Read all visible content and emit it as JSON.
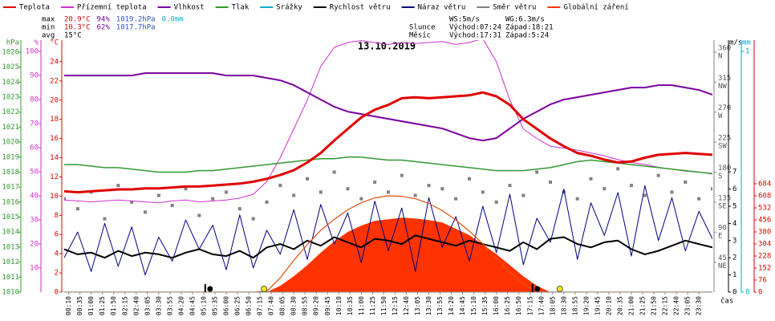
{
  "chart_data": {
    "type": "line",
    "title": "13.10.2019",
    "x_label": "čas",
    "x": [
      0,
      30,
      60,
      90,
      120,
      150,
      180,
      210,
      240,
      270,
      300,
      330,
      360,
      390,
      420,
      450,
      480,
      510,
      540,
      570,
      600,
      630,
      660,
      690,
      720,
      750,
      780,
      810,
      840,
      870,
      900,
      930,
      960,
      990,
      1020,
      1050,
      1080,
      1110,
      1140,
      1170,
      1200,
      1230,
      1260,
      1290,
      1320,
      1350,
      1380,
      1410,
      1440
    ],
    "xlim": [
      0,
      1440
    ],
    "xticks": [
      {
        "value": 10,
        "label": "00:10"
      },
      {
        "value": 35,
        "label": "00:35"
      },
      {
        "value": 60,
        "label": "01:00"
      },
      {
        "value": 85,
        "label": "01:25"
      },
      {
        "value": 110,
        "label": "01:50"
      },
      {
        "value": 135,
        "label": "02:15"
      },
      {
        "value": 160,
        "label": "02:40"
      },
      {
        "value": 185,
        "label": "03:05"
      },
      {
        "value": 210,
        "label": "03:30"
      },
      {
        "value": 235,
        "label": "03:55"
      },
      {
        "value": 260,
        "label": "04:20"
      },
      {
        "value": 285,
        "label": "04:45"
      },
      {
        "value": 310,
        "label": "05:10"
      },
      {
        "value": 335,
        "label": "05:35"
      },
      {
        "value": 360,
        "label": "06:00"
      },
      {
        "value": 385,
        "label": "06:25"
      },
      {
        "value": 410,
        "label": "06:50"
      },
      {
        "value": 435,
        "label": "07:15"
      },
      {
        "value": 460,
        "label": "07:40"
      },
      {
        "value": 485,
        "label": "08:05"
      },
      {
        "value": 510,
        "label": "08:30"
      },
      {
        "value": 535,
        "label": "08:55"
      },
      {
        "value": 560,
        "label": "09:20"
      },
      {
        "value": 585,
        "label": "09:45"
      },
      {
        "value": 610,
        "label": "10:10"
      },
      {
        "value": 635,
        "label": "10:35"
      },
      {
        "value": 660,
        "label": "11:00"
      },
      {
        "value": 685,
        "label": "11:25"
      },
      {
        "value": 710,
        "label": "11:50"
      },
      {
        "value": 735,
        "label": "12:15"
      },
      {
        "value": 760,
        "label": "12:40"
      },
      {
        "value": 785,
        "label": "13:05"
      },
      {
        "value": 810,
        "label": "13:30"
      },
      {
        "value": 835,
        "label": "13:55"
      },
      {
        "value": 860,
        "label": "14:20"
      },
      {
        "value": 885,
        "label": "14:45"
      },
      {
        "value": 910,
        "label": "15:10"
      },
      {
        "value": 935,
        "label": "15:35"
      },
      {
        "value": 960,
        "label": "16:00"
      },
      {
        "value": 985,
        "label": "16:25"
      },
      {
        "value": 1010,
        "label": "16:50"
      },
      {
        "value": 1035,
        "label": "17:15"
      },
      {
        "value": 1060,
        "label": "17:40"
      },
      {
        "value": 1085,
        "label": "18:05"
      },
      {
        "value": 1110,
        "label": "18:30"
      },
      {
        "value": 1135,
        "label": "18:55"
      },
      {
        "value": 1160,
        "label": "19:20"
      },
      {
        "value": 1185,
        "label": "19:45"
      },
      {
        "value": 1210,
        "label": "20:10"
      },
      {
        "value": 1235,
        "label": "20:35"
      },
      {
        "value": 1260,
        "label": "21:00"
      },
      {
        "value": 1285,
        "label": "21:25"
      },
      {
        "value": 1310,
        "label": "21:50"
      },
      {
        "value": 1335,
        "label": "22:15"
      },
      {
        "value": 1360,
        "label": "22:40"
      },
      {
        "value": 1385,
        "label": "23:05"
      },
      {
        "value": 1410,
        "label": "23:30"
      }
    ],
    "axes": {
      "hpa": {
        "unit": "hPa",
        "color": "#339933",
        "side": "left",
        "lim": [
          1010,
          1026.8
        ],
        "ticks": [
          1010,
          1011,
          1012,
          1013,
          1014,
          1015,
          1016,
          1017,
          1018,
          1019,
          1020,
          1021,
          1022,
          1023,
          1024,
          1025,
          1026
        ]
      },
      "pct": {
        "unit": "%",
        "color": "#cc33cc",
        "side": "left",
        "lim": [
          0,
          104.7
        ],
        "ticks": [
          10,
          20,
          30,
          40,
          50,
          60,
          70,
          80,
          90,
          100
        ]
      },
      "c": {
        "unit": "°C",
        "color": "#e00000",
        "side": "left",
        "lim": [
          0,
          26.25
        ],
        "ticks": [
          0,
          2,
          4,
          6,
          8,
          10,
          12,
          14,
          16,
          18,
          20,
          22,
          24
        ]
      },
      "deg": {
        "color": "#808080",
        "side": "right",
        "lim": [
          0,
          378
        ],
        "ticks": [
          45,
          90,
          135,
          180,
          225,
          270,
          315,
          360
        ],
        "names": [
          "NE",
          "E",
          "SE",
          "S",
          "SW",
          "W",
          "NW",
          "N"
        ]
      },
      "ms": {
        "unit": "m/s",
        "color": "#000000",
        "side": "right",
        "lim": [
          0,
          14.67
        ],
        "ticks": [
          0,
          1,
          2,
          3,
          4,
          5,
          6,
          7
        ]
      },
      "mm": {
        "unit": "mm",
        "color": "#00aacc",
        "side": "right",
        "lim": [
          0,
          1.047
        ],
        "ticks": [
          0,
          1
        ]
      },
      "w": {
        "color": "#e00000",
        "side": "right",
        "lim": [
          0,
          1591
        ],
        "ticks": [
          0,
          76,
          152,
          228,
          304,
          380,
          456,
          532,
          608,
          684
        ]
      }
    },
    "series": [
      {
        "name": "Teplota",
        "color": "#e00000",
        "axis": "c",
        "width": 3,
        "values": [
          10.5,
          10.4,
          10.5,
          10.6,
          10.7,
          10.7,
          10.8,
          10.8,
          10.9,
          11.0,
          11.0,
          11.1,
          11.2,
          11.3,
          11.5,
          11.8,
          12.2,
          12.7,
          13.5,
          14.5,
          15.8,
          17.0,
          18.2,
          19.0,
          19.5,
          20.2,
          20.3,
          20.2,
          20.3,
          20.4,
          20.5,
          20.8,
          20.4,
          19.5,
          18.0,
          17.0,
          16.0,
          15.2,
          14.5,
          14.2,
          13.8,
          13.5,
          13.6,
          14.0,
          14.3,
          14.4,
          14.5,
          14.4,
          14.3
        ]
      },
      {
        "name": "Přízemní teplota",
        "color": "#cc33cc",
        "axis": "c",
        "width": 1,
        "values": [
          9.6,
          9.5,
          9.4,
          9.5,
          9.6,
          9.5,
          9.4,
          9.3,
          9.5,
          9.6,
          9.4,
          9.5,
          9.6,
          9.8,
          10.2,
          11.5,
          14,
          17,
          20,
          23.5,
          25.5,
          26,
          26.2,
          26,
          25.8,
          26,
          25.9,
          26,
          26.1,
          25.8,
          26,
          26.4,
          24,
          20,
          17,
          16,
          15.2,
          15,
          14.8,
          14.5,
          14.2,
          13.8,
          13.5,
          13.3,
          13,
          12.8,
          12.6,
          12.5,
          12.3
        ]
      },
      {
        "name": "Vlhkost",
        "color": "#7a00a0",
        "axis": "pct",
        "width": 2,
        "values": [
          90,
          90,
          90,
          90,
          90,
          90,
          91,
          91,
          91,
          91,
          91,
          91,
          90,
          90,
          90,
          89,
          88,
          86,
          83,
          80,
          77,
          75,
          74,
          73,
          72,
          71,
          70,
          69,
          68,
          66,
          64,
          63,
          64,
          68,
          72,
          75,
          78,
          80,
          81,
          82,
          83,
          84,
          85,
          85,
          86,
          86,
          85,
          84,
          82
        ]
      },
      {
        "name": "Tlak",
        "color": "#339933",
        "axis": "hpa",
        "width": 1.5,
        "values": [
          1018.5,
          1018.5,
          1018.4,
          1018.3,
          1018.3,
          1018.2,
          1018.1,
          1018.0,
          1018.0,
          1018.0,
          1018.1,
          1018.1,
          1018.2,
          1018.3,
          1018.4,
          1018.5,
          1018.6,
          1018.7,
          1018.8,
          1018.9,
          1018.9,
          1019.0,
          1019.0,
          1018.9,
          1018.8,
          1018.8,
          1018.7,
          1018.6,
          1018.5,
          1018.4,
          1018.3,
          1018.2,
          1018.1,
          1018.1,
          1018.1,
          1018.2,
          1018.3,
          1018.5,
          1018.7,
          1018.8,
          1018.7,
          1018.6,
          1018.5,
          1018.4,
          1018.3,
          1018.2,
          1018.1,
          1018.0,
          1017.9
        ]
      },
      {
        "name": "Srážky",
        "color": "#00aacc",
        "axis": "mm",
        "width": 1,
        "values": [
          0,
          0,
          0,
          0,
          0,
          0,
          0,
          0,
          0,
          0,
          0,
          0,
          0,
          0,
          0,
          0,
          0,
          0,
          0,
          0,
          0,
          0,
          0,
          0,
          0,
          0,
          0,
          0,
          0,
          0,
          0,
          0,
          0,
          0,
          0,
          0,
          0,
          0,
          0,
          0,
          0,
          0,
          0,
          0,
          0,
          0,
          0,
          0,
          0
        ]
      },
      {
        "name": "Rychlost větru",
        "color": "#000000",
        "axis": "ms",
        "width": 2,
        "values": [
          2.5,
          2.2,
          2.3,
          2.0,
          2.4,
          2.1,
          2.3,
          2.2,
          2.0,
          2.3,
          2.5,
          2.2,
          2.1,
          2.4,
          2.0,
          2.6,
          2.8,
          2.5,
          3.0,
          2.7,
          3.2,
          2.9,
          2.6,
          3.1,
          3.0,
          2.8,
          3.3,
          3.1,
          2.9,
          2.7,
          3.0,
          2.8,
          2.6,
          2.4,
          2.9,
          2.5,
          3.1,
          3.2,
          2.8,
          2.6,
          2.9,
          3.0,
          2.5,
          2.2,
          2.4,
          2.7,
          3.0,
          2.8,
          2.6
        ]
      },
      {
        "name": "Náraz větru",
        "color": "#000080",
        "axis": "ms",
        "width": 1,
        "values": [
          2.0,
          3.5,
          1.2,
          4.0,
          1.5,
          3.8,
          1.0,
          3.2,
          1.8,
          4.2,
          2.5,
          3.9,
          1.3,
          4.5,
          1.4,
          3.6,
          2.2,
          4.8,
          1.9,
          5.1,
          2.8,
          4.6,
          1.7,
          5.3,
          2.4,
          4.9,
          1.2,
          5.5,
          2.6,
          4.4,
          1.8,
          5.0,
          2.3,
          5.7,
          1.6,
          4.3,
          2.9,
          6.0,
          1.9,
          5.2,
          3.3,
          5.8,
          2.1,
          6.2,
          3.0,
          5.5,
          2.4,
          4.7,
          3.1
        ]
      },
      {
        "name": "Směr větru",
        "color": "#808080",
        "axis": "deg",
        "kind": "scatter",
        "values": [
          140,
          125,
          150,
          110,
          160,
          135,
          120,
          145,
          130,
          155,
          115,
          140,
          150,
          125,
          110,
          135,
          160,
          145,
          170,
          150,
          180,
          155,
          140,
          165,
          150,
          175,
          145,
          160,
          155,
          140,
          170,
          150,
          135,
          160,
          145,
          180,
          165,
          150,
          140,
          170,
          155,
          185,
          160,
          145,
          175,
          150,
          165,
          140,
          155
        ]
      },
      {
        "name": "Globální záření",
        "color": "#ff3300",
        "axis": "w",
        "kind": "area",
        "values": [
          0,
          0,
          0,
          0,
          0,
          0,
          0,
          0,
          0,
          0,
          0,
          0,
          0,
          0,
          0,
          0,
          40,
          100,
          170,
          250,
          320,
          380,
          420,
          450,
          460,
          470,
          465,
          455,
          440,
          400,
          360,
          300,
          240,
          170,
          100,
          40,
          0,
          0,
          0,
          0,
          0,
          0,
          0,
          0,
          0,
          0,
          0,
          0,
          0
        ]
      }
    ],
    "theoretical_radiation": {
      "color": "#e05010",
      "axis": "w",
      "values": [
        0,
        0,
        0,
        0,
        0,
        0,
        0,
        0,
        0,
        0,
        0,
        0,
        0,
        0,
        0,
        5,
        90,
        200,
        300,
        390,
        460,
        520,
        565,
        595,
        608,
        605,
        590,
        560,
        515,
        455,
        385,
        305,
        215,
        125,
        50,
        5,
        0,
        0,
        0,
        0,
        0,
        0,
        0,
        0,
        0,
        0,
        0,
        0,
        0
      ]
    },
    "moon_x": [
      324,
      1051
    ],
    "sun_x": [
      444,
      1101
    ],
    "stats": [
      {
        "label": "max",
        "items": [
          {
            "text": "20.9°C",
            "color": "#e00000"
          },
          {
            "text": "94%",
            "color": "#7a00a0"
          },
          {
            "text": "1019.2hPa",
            "color": "#3050c0"
          },
          {
            "text": "0.0mm",
            "color": "#00aacc"
          }
        ]
      },
      {
        "label": "min",
        "items": [
          {
            "text": "10.3°C",
            "color": "#e00000"
          },
          {
            "text": "62%",
            "color": "#7a00a0"
          },
          {
            "text": "1017.7hPa",
            "color": "#3050c0"
          }
        ]
      },
      {
        "label": "avg",
        "items": [
          {
            "text": "15°C",
            "color": "#000000"
          }
        ]
      }
    ],
    "info": [
      [
        "WS:5m/s",
        "WG:6.3m/s"
      ],
      [
        "Slunce",
        "Východ:07:24",
        "Západ:18:21"
      ],
      [
        "Měsíc",
        "Východ:17:31",
        "Západ:5:24"
      ]
    ]
  }
}
